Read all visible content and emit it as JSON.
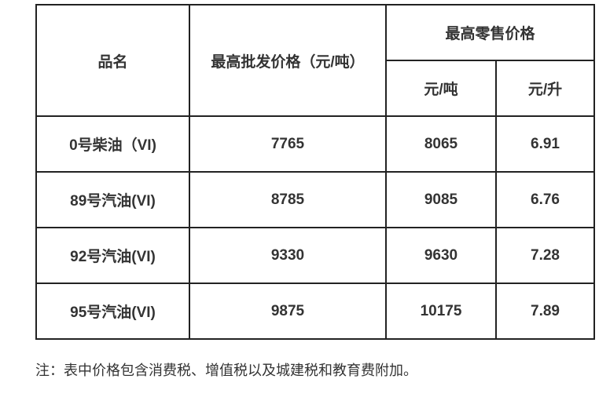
{
  "table": {
    "header": {
      "col_product": "品名",
      "col_wholesale": "最高批发价格（元/吨）",
      "col_retail_group": "最高零售价格",
      "col_retail_ton": "元/吨",
      "col_retail_liter": "元/升"
    },
    "rows": [
      {
        "name": "0号柴油（VI)",
        "wholesale": "7765",
        "retail_ton": "8065",
        "retail_liter": "6.91"
      },
      {
        "name": "89号汽油(VI)",
        "wholesale": "8785",
        "retail_ton": "9085",
        "retail_liter": "6.76"
      },
      {
        "name": "92号汽油(VI)",
        "wholesale": "9330",
        "retail_ton": "9630",
        "retail_liter": "7.28"
      },
      {
        "name": "95号汽油(VI)",
        "wholesale": "9875",
        "retail_ton": "10175",
        "retail_liter": "7.89"
      }
    ]
  },
  "note": "注：表中价格包含消费税、增值税以及城建税和教育费附加。",
  "colors": {
    "text": "#333333",
    "border": "#222222",
    "background": "#ffffff"
  }
}
